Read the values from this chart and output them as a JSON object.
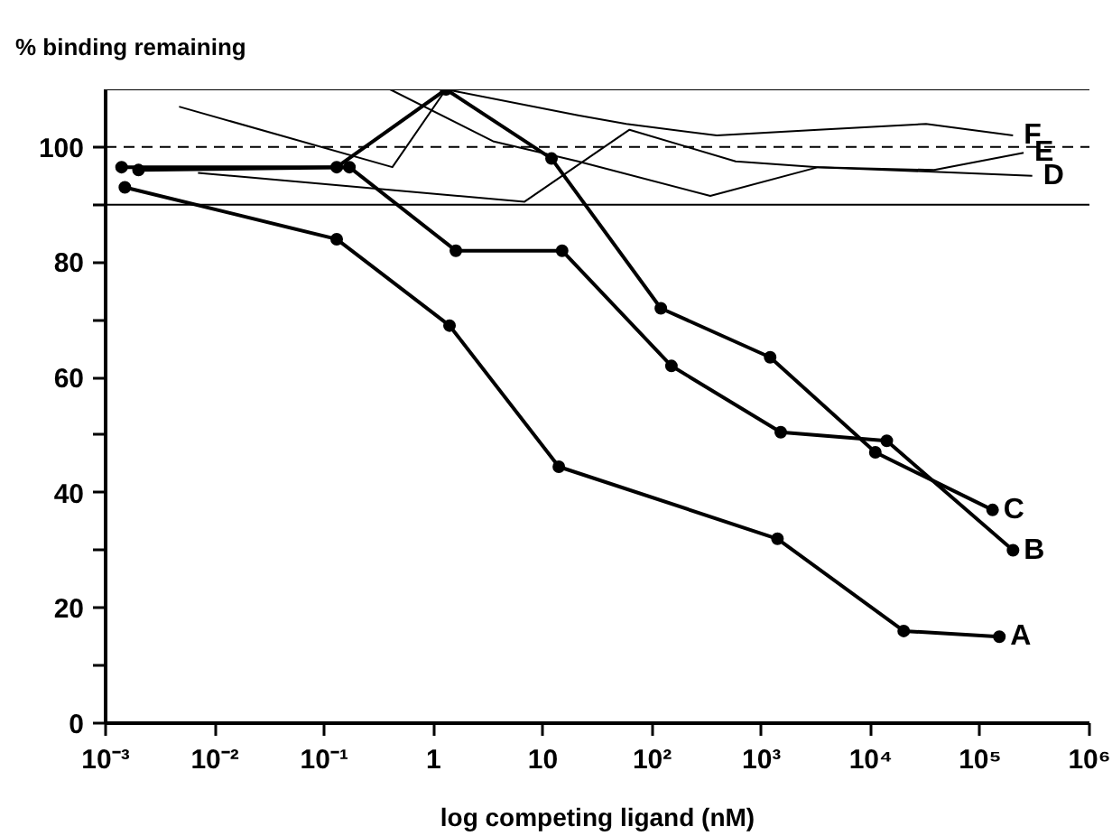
{
  "chart_data": {
    "type": "line",
    "ylabel": "% binding remaining",
    "xlabel": "log competing ligand (nM)",
    "log": "x",
    "grid": false,
    "xlim": [
      0.001,
      1000000
    ],
    "ylim": [
      0,
      110
    ],
    "xticks": [
      {
        "value": 0.001,
        "label": "10⁻³"
      },
      {
        "value": 0.01,
        "label": "10⁻²"
      },
      {
        "value": 0.1,
        "label": "10⁻¹"
      },
      1,
      10,
      {
        "value": 100,
        "label": "10²"
      },
      {
        "value": 1000,
        "label": "10³"
      },
      {
        "value": 10000,
        "label": "10⁴"
      },
      {
        "value": 100000,
        "label": "10⁵"
      },
      {
        "value": 1000000,
        "label": "10⁶"
      }
    ],
    "yticks": [
      0,
      {
        "value": 10,
        "label": null
      },
      20,
      {
        "value": 30,
        "label": null
      },
      40,
      {
        "value": 50,
        "label": null
      },
      60,
      {
        "value": 70,
        "label": null
      },
      80,
      {
        "value": 90,
        "label": null
      },
      100
    ],
    "ref_lines": [
      {
        "axis": "y",
        "value": 90,
        "color": "#000000",
        "line_style": "solid"
      },
      {
        "axis": "y",
        "value": 100,
        "color": "#000000",
        "line_style": "dashed"
      },
      {
        "axis": "y",
        "value": 110,
        "color": "#000000",
        "line_style": "solid"
      }
    ],
    "series": [
      {
        "name": "A",
        "color": "#000000",
        "marker": "circle",
        "x": [
          0.0015,
          0.13,
          1.4,
          14,
          1400,
          20000,
          150000
        ],
        "values": [
          93,
          84,
          69,
          44.5,
          32,
          16,
          15
        ]
      },
      {
        "name": "B",
        "color": "#000000",
        "marker": "circle",
        "x": [
          0.002,
          0.17,
          1.6,
          15,
          150,
          1500,
          14000,
          200000
        ],
        "values": [
          96,
          96.5,
          82,
          82,
          62,
          50.5,
          49,
          30
        ]
      },
      {
        "name": "C",
        "color": "#000000",
        "marker": "circle",
        "x": [
          0.0014,
          0.13,
          1.3,
          12,
          120,
          1200,
          11000,
          130000
        ],
        "values": [
          96.5,
          96.5,
          110,
          98,
          72,
          63.5,
          47,
          37
        ]
      },
      {
        "name": "D",
        "color": "#000000",
        "marker": "none",
        "x": [
          0.007,
          6.8,
          62,
          580,
          3300,
          300000
        ],
        "values": [
          95.5,
          90.5,
          103,
          97.5,
          96.5,
          95
        ]
      },
      {
        "name": "E",
        "color": "#000000",
        "marker": "none",
        "x": [
          0.4,
          3.5,
          21,
          340,
          3300,
          38000,
          250000
        ],
        "values": [
          110,
          101,
          97.5,
          91.5,
          96.5,
          96,
          99
        ]
      },
      {
        "name": "F",
        "color": "#000000",
        "marker": "none",
        "x": [
          0.0047,
          0.42,
          1.3,
          21,
          58,
          390,
          3300,
          32000,
          200000
        ],
        "values": [
          107,
          96.5,
          110,
          105.5,
          104,
          102,
          103,
          104,
          102
        ]
      }
    ]
  }
}
